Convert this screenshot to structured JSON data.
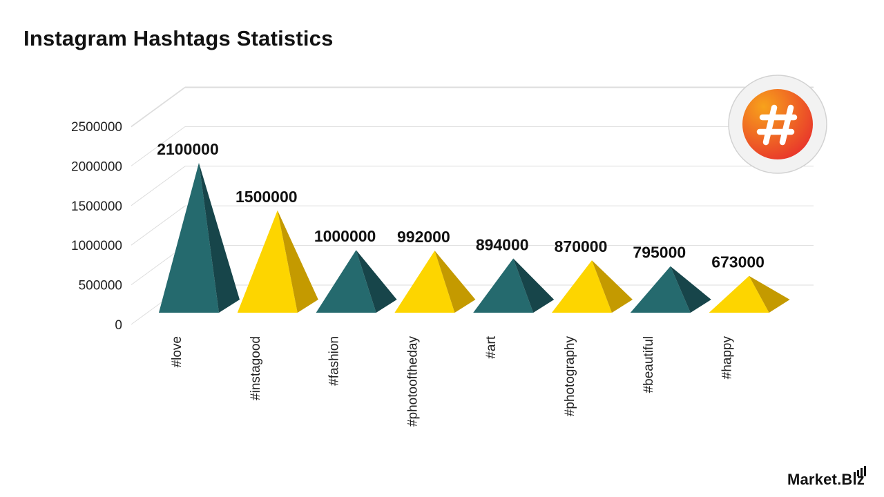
{
  "title": "Instagram Hashtags Statistics",
  "brand": "Market.Biz",
  "badge_icon": "hashtag-icon",
  "colors": {
    "teal_front": "#256a6e",
    "teal_side": "#17454a",
    "yellow_front": "#fdd500",
    "yellow_side": "#c49a00",
    "badge_gradient_top": "#f7a21b",
    "badge_gradient_bottom": "#e8332c",
    "gridline": "#dddddd",
    "text": "#111111"
  },
  "chart_data": {
    "type": "bar",
    "style": "3d-pyramid",
    "title": "Instagram Hashtags Statistics",
    "xlabel": "",
    "ylabel": "",
    "categories": [
      "#love",
      "#instagood",
      "#fashion",
      "#photooftheday",
      "#art",
      "#photography",
      "#beautiful",
      "#happy"
    ],
    "values": [
      2100000,
      1500000,
      1000000,
      992000,
      894000,
      870000,
      795000,
      673000
    ],
    "value_labels": [
      "2100000",
      "1500000",
      "1000000",
      "992000",
      "894000",
      "870000",
      "795000",
      "673000"
    ],
    "y_ticks": [
      "0",
      "500000",
      "1000000",
      "1500000",
      "2000000",
      "2500000"
    ],
    "ylim": [
      0,
      2500000
    ],
    "grid": true,
    "legend": "none",
    "bar_colors": [
      "teal",
      "yellow",
      "teal",
      "yellow",
      "teal",
      "yellow",
      "teal",
      "yellow"
    ]
  }
}
